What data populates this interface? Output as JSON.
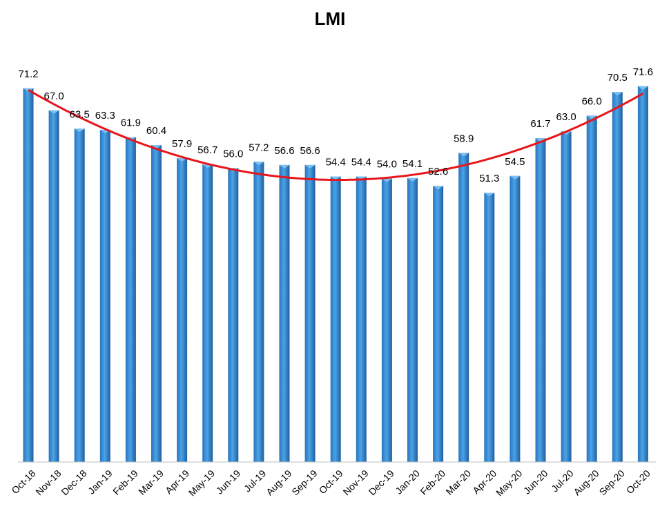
{
  "chart_data": {
    "type": "bar",
    "title": "LMI",
    "xlabel": "",
    "ylabel": "",
    "categories": [
      "Oct-18",
      "Nov-18",
      "Dec-18",
      "Jan-19",
      "Feb-19",
      "Mar-19",
      "Apr-19",
      "May-19",
      "Jun-19",
      "Jul-19",
      "Aug-19",
      "Sep-19",
      "Oct-19",
      "Nov-19",
      "Dec-19",
      "Jan-20",
      "Feb-20",
      "Mar-20",
      "Apr-20",
      "May-20",
      "Jun-20",
      "Jul-20",
      "Aug-20",
      "Sep-20",
      "Oct-20"
    ],
    "values": [
      71.2,
      67.0,
      63.5,
      63.3,
      61.9,
      60.4,
      57.9,
      56.7,
      56.0,
      57.2,
      56.6,
      56.6,
      54.4,
      54.4,
      54.0,
      54.1,
      52.6,
      58.9,
      51.3,
      54.5,
      61.7,
      63.0,
      66.0,
      70.5,
      71.6
    ],
    "value_labels": [
      "71.2",
      "67.0",
      "63.5",
      "63.3",
      "61.9",
      "60.4",
      "57.9",
      "56.7",
      "56.0",
      "57.2",
      "56.6",
      "56.6",
      "54.4",
      "54.4",
      "54.0",
      "54.1",
      "52.6",
      "58.9",
      "51.3",
      "54.5",
      "61.7",
      "63.0",
      "66.0",
      "70.5",
      "71.6"
    ],
    "ylim": [
      0,
      75
    ],
    "grid": false,
    "legend": "none",
    "trendline": {
      "type": "polynomial",
      "color": "#e8151b"
    },
    "colors": {
      "bar": "#3a8fd9",
      "bar_dark": "#1f5f9e",
      "bar_light": "#7cc0f2",
      "axis": "#bfbfbf"
    }
  }
}
